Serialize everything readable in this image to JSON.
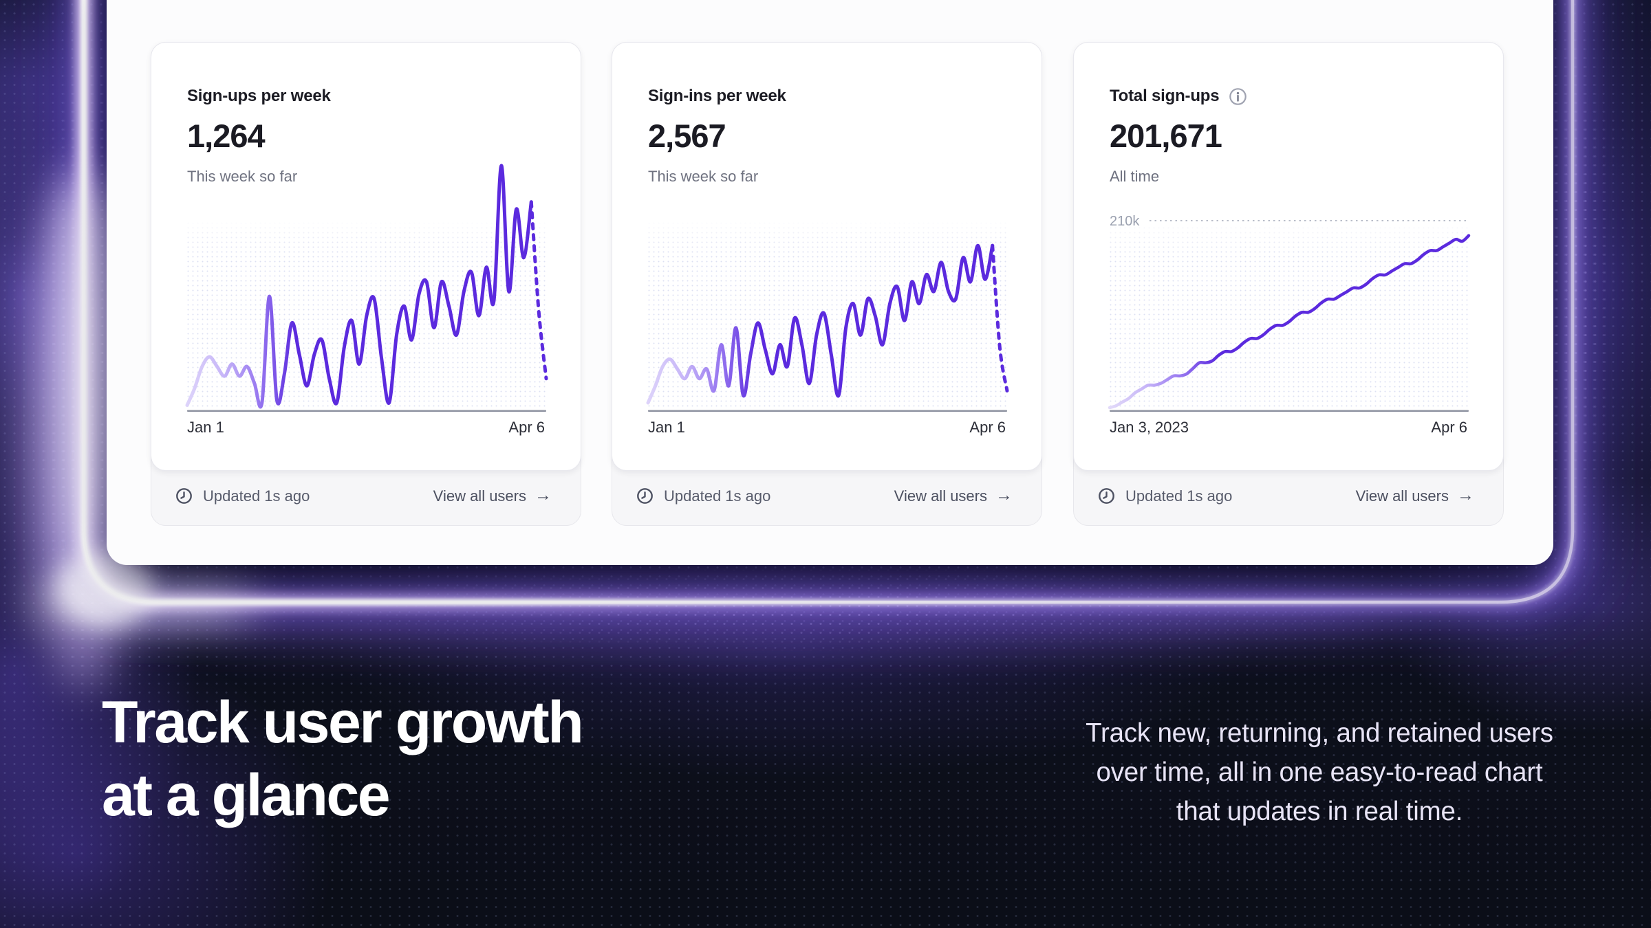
{
  "hero": {
    "line1": "Track user growth",
    "line2": "at a glance",
    "paragraph": "Track new, returning, and retained users over time, all in one easy-to-read chart that updates in real time."
  },
  "cards": [
    {
      "title": "Sign-ups per week",
      "value": "1,264",
      "subtitle": "This week so far",
      "x_start": "Jan 1",
      "x_end": "Apr 6",
      "updated": "Updated 1s ago",
      "link_label": "View all users",
      "arrow_icon": "→"
    },
    {
      "title": "Sign-ins per week",
      "value": "2,567",
      "subtitle": "This week so far",
      "x_start": "Jan 1",
      "x_end": "Apr 6",
      "updated": "Updated 1s ago",
      "link_label": "View all users",
      "arrow_icon": "→"
    },
    {
      "title": "Total sign-ups",
      "value": "201,671",
      "subtitle": "All time",
      "x_start": "Jan 3, 2023",
      "x_end": "Apr 6",
      "updated": "Updated 1s ago",
      "link_label": "View all users",
      "arrow_icon": "→",
      "info_icon": "info-circle"
    }
  ],
  "chart_data": [
    {
      "type": "line",
      "title": "Sign-ups per week",
      "x_range": [
        "Jan 1",
        "Apr 6"
      ],
      "y_axis_visible": false,
      "unit": "relative height, % of plot (no y-axis shown)",
      "values_solid": [
        1,
        8,
        17,
        21,
        17,
        13,
        18,
        13,
        17,
        10,
        2,
        46,
        3,
        14,
        35,
        22,
        9,
        22,
        28,
        12,
        2,
        25,
        36,
        18,
        38,
        45,
        20,
        2,
        30,
        42,
        28,
        47,
        52,
        33,
        52,
        42,
        30,
        48,
        56,
        38,
        58,
        44,
        100,
        48,
        82,
        62,
        85
      ],
      "values_projection": [
        40,
        12
      ],
      "line_color": "#5b2ade",
      "line_color_faded": "#ddd3fa",
      "dot_fill_color": "#c7cbea",
      "axis_color": "#8f93a1"
    },
    {
      "type": "line",
      "title": "Sign-ins per week",
      "x_range": [
        "Jan 1",
        "Apr 6"
      ],
      "y_axis_visible": false,
      "unit": "relative height, % of plot (no y-axis shown)",
      "values_solid": [
        2,
        9,
        17,
        20,
        16,
        12,
        17,
        12,
        16,
        7,
        26,
        9,
        33,
        5,
        22,
        35,
        24,
        14,
        26,
        17,
        37,
        26,
        10,
        30,
        39,
        22,
        5,
        33,
        43,
        30,
        45,
        38,
        26,
        43,
        50,
        36,
        52,
        43,
        55,
        48,
        60,
        48,
        45,
        62,
        52,
        67,
        53,
        67
      ],
      "values_projection": [
        25,
        7
      ],
      "line_color": "#5b2ade",
      "line_color_faded": "#ddd3fa",
      "dot_fill_color": "#c7cbea",
      "axis_color": "#8f93a1"
    },
    {
      "type": "line",
      "title": "Total sign-ups (cumulative, all time)",
      "x_range": [
        "Jan 3, 2023",
        "Apr 6"
      ],
      "y_axis_visible": false,
      "gridline": {
        "label": "210k",
        "value": 100
      },
      "unit": "relative height, % of plot; top gridline = 210k users",
      "values_solid": [
        0,
        1,
        3,
        5,
        8,
        10,
        12,
        12,
        13,
        15,
        17,
        17,
        18,
        21,
        24,
        24,
        25,
        28,
        30,
        30,
        32,
        35,
        37,
        37,
        39,
        42,
        44,
        44,
        46,
        49,
        51,
        51,
        53,
        56,
        58,
        58,
        60,
        62,
        64,
        64,
        66,
        69,
        71,
        71,
        73,
        75,
        77,
        77,
        79,
        82,
        84,
        84,
        86,
        88,
        90,
        89,
        92
      ],
      "values_projection": [],
      "line_color": "#5b2ade",
      "line_color_faded": "#e2daf9",
      "dot_fill_color": "#c7cbea",
      "axis_color": "#8f93a1",
      "gridline_color": "#b9bdc9",
      "gridline_label_color": "#9aa0af"
    }
  ],
  "colors": {
    "accent_purple": "#5b2ade",
    "neon_glow": "#8d68f2",
    "background_dark": "#0d101d",
    "panel_white": "#fcfcfd",
    "group_gray": "#f6f6f8",
    "text_dark": "#1b1b23",
    "text_gray": "#6f7280",
    "hero_text": "#ffffff",
    "para_text": "#e8e4f6"
  }
}
